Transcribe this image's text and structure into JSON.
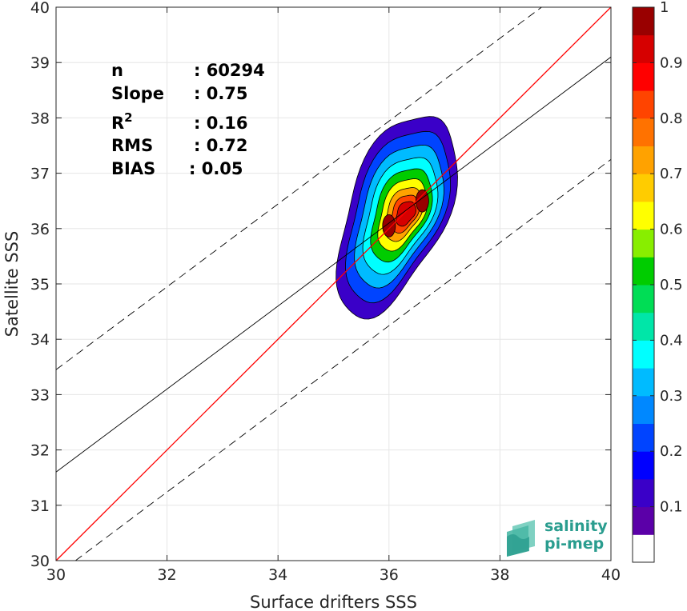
{
  "chart_data": {
    "type": "contour",
    "xlabel": "Surface drifters SSS",
    "ylabel": "Satellite SSS",
    "xlim": [
      30,
      40
    ],
    "ylim": [
      30,
      40
    ],
    "xticks": [
      "30",
      "32",
      "34",
      "36",
      "38",
      "40"
    ],
    "yticks": [
      "30",
      "31",
      "32",
      "33",
      "34",
      "35",
      "36",
      "37",
      "38",
      "39",
      "40"
    ],
    "grid": true,
    "stats": [
      {
        "label": "n",
        "value": ": 60294"
      },
      {
        "label": "Slope",
        "value": ": 0.75"
      },
      {
        "label": "R",
        "sup": "2",
        "value": ": 0.16"
      },
      {
        "label": "RMS",
        "value": ": 0.72"
      },
      {
        "label": "BIAS",
        "value": ": 0.05"
      }
    ],
    "lines": [
      {
        "name": "1:1 line",
        "color": "#ff0000",
        "style": "solid",
        "points": [
          [
            30,
            30
          ],
          [
            40,
            40
          ]
        ]
      },
      {
        "name": "regression fit",
        "color": "#000000",
        "style": "solid",
        "points": [
          [
            30,
            31.6
          ],
          [
            40,
            39.1
          ]
        ]
      },
      {
        "name": "upper bound",
        "color": "#000000",
        "style": "dashed",
        "points": [
          [
            30,
            33.45
          ],
          [
            38.75,
            40
          ]
        ]
      },
      {
        "name": "lower bound",
        "color": "#000000",
        "style": "dashed",
        "points": [
          [
            30.35,
            30
          ],
          [
            40,
            37.25
          ]
        ]
      }
    ],
    "density_contours": {
      "levels": [
        0.05,
        0.15,
        0.25,
        0.35,
        0.45,
        0.55,
        0.65,
        0.75,
        0.85
      ],
      "peaks": [
        {
          "x": 36.0,
          "y": 36.05,
          "level": 0.95
        },
        {
          "x": 36.6,
          "y": 36.5,
          "level": 0.95
        }
      ],
      "outer_extent": {
        "x": [
          35.2,
          37.05
        ],
        "y": [
          34.45,
          38.1
        ]
      }
    },
    "colorbar": {
      "range": [
        0,
        1
      ],
      "ticks": [
        "0.1",
        "0.2",
        "0.3",
        "0.4",
        "0.5",
        "0.6",
        "0.7",
        "0.8",
        "0.9",
        "1"
      ],
      "colors": [
        "#ffffff",
        "#5b00a8",
        "#3a00c8",
        "#0000ff",
        "#0044ff",
        "#0088ff",
        "#00bbff",
        "#00ffff",
        "#00e6a8",
        "#00dd55",
        "#00cc00",
        "#88ee00",
        "#ffff00",
        "#ffcc00",
        "#ffa200",
        "#ff7200",
        "#ff4400",
        "#ff0000",
        "#d60000",
        "#990000"
      ]
    },
    "logo": {
      "line1": "salinity",
      "line2": "pi-mep"
    }
  }
}
